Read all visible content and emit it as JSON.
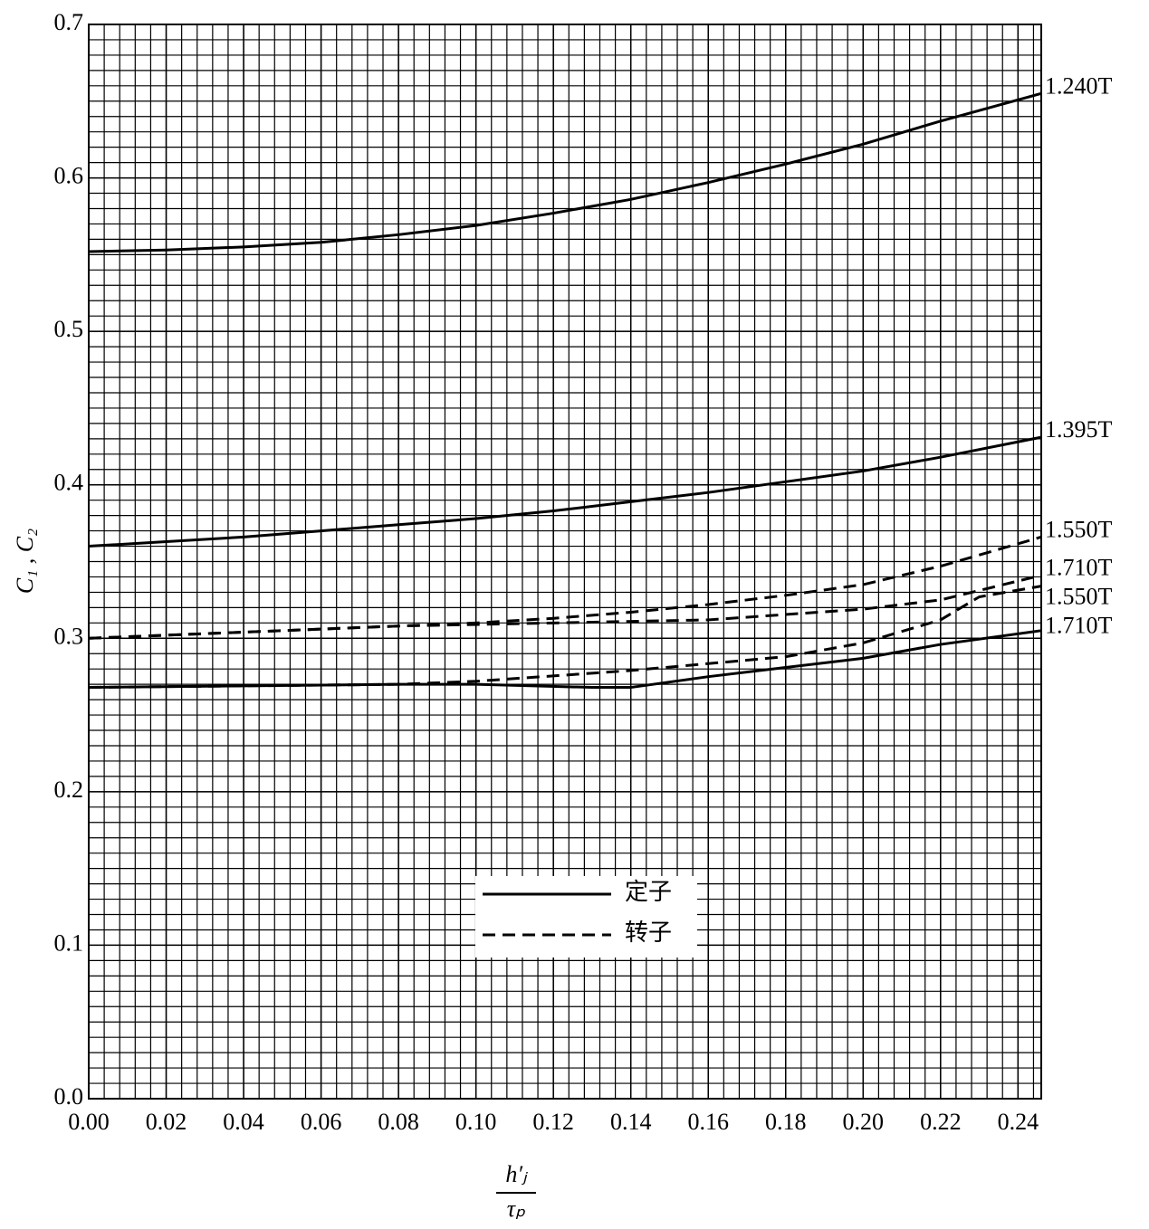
{
  "chart_data": {
    "type": "line",
    "y_label": "C₁ , C₂",
    "x_label": {
      "numerator": "h′ⱼ",
      "denominator": "τₚ"
    },
    "xlim": [
      0,
      0.246
    ],
    "ylim": [
      0,
      0.7
    ],
    "xticks": [
      {
        "value": 0,
        "label": "0.00"
      },
      0.02,
      0.04,
      0.06,
      0.08,
      {
        "value": 0.1,
        "label": "0.10"
      },
      0.12,
      0.14,
      0.16,
      0.18,
      {
        "value": 0.2,
        "label": "0.20"
      },
      0.22,
      0.24
    ],
    "yticks": [
      {
        "value": 0,
        "label": "0.0"
      },
      0.1,
      0.2,
      0.3,
      0.4,
      0.5,
      0.6,
      0.7
    ],
    "grid": true,
    "minor_grid": {
      "x": 5,
      "y": 10
    },
    "legend": [
      {
        "name": "定子",
        "dash": "solid"
      },
      {
        "name": "转子",
        "dash": "dashed"
      }
    ],
    "series": [
      {
        "label": "1.240T",
        "dash": "solid",
        "color": "#000000",
        "x": [
          0,
          0.02,
          0.04,
          0.06,
          0.08,
          0.1,
          0.12,
          0.14,
          0.16,
          0.18,
          0.2,
          0.22,
          0.246
        ],
        "values": [
          0.552,
          0.553,
          0.555,
          0.558,
          0.563,
          0.569,
          0.577,
          0.586,
          0.597,
          0.609,
          0.622,
          0.637,
          0.655
        ]
      },
      {
        "label": "1.395T",
        "dash": "solid",
        "color": "#000000",
        "x": [
          0,
          0.02,
          0.04,
          0.06,
          0.08,
          0.1,
          0.12,
          0.14,
          0.16,
          0.18,
          0.2,
          0.22,
          0.246
        ],
        "values": [
          0.36,
          0.363,
          0.366,
          0.37,
          0.374,
          0.378,
          0.383,
          0.389,
          0.395,
          0.402,
          0.409,
          0.418,
          0.431
        ]
      },
      {
        "label": "1.550T",
        "dash": "dashed",
        "color": "#000000",
        "x": [
          0,
          0.02,
          0.04,
          0.06,
          0.08,
          0.1,
          0.12,
          0.14,
          0.16,
          0.18,
          0.2,
          0.22,
          0.246
        ],
        "values": [
          0.3,
          0.302,
          0.304,
          0.306,
          0.308,
          0.31,
          0.313,
          0.317,
          0.322,
          0.328,
          0.335,
          0.347,
          0.366
        ]
      },
      {
        "label": "1.710T",
        "dash": "dashed",
        "color": "#000000",
        "x": [
          0,
          0.04,
          0.08,
          0.12,
          0.16,
          0.2,
          0.22,
          0.246
        ],
        "values": [
          0.3,
          0.304,
          0.308,
          0.31,
          0.312,
          0.319,
          0.325,
          0.341
        ]
      },
      {
        "label": "1.550T",
        "dash": "dashed",
        "color": "#000000",
        "x": [
          0,
          0.04,
          0.08,
          0.1,
          0.14,
          0.18,
          0.2,
          0.22,
          0.23,
          0.246
        ],
        "values": [
          0.268,
          0.269,
          0.27,
          0.272,
          0.279,
          0.288,
          0.297,
          0.312,
          0.327,
          0.334
        ]
      },
      {
        "label": "1.710T",
        "dash": "solid",
        "color": "#000000",
        "x": [
          0,
          0.04,
          0.08,
          0.1,
          0.13,
          0.14,
          0.16,
          0.18,
          0.2,
          0.22,
          0.246
        ],
        "values": [
          0.268,
          0.269,
          0.27,
          0.27,
          0.268,
          0.268,
          0.275,
          0.281,
          0.287,
          0.296,
          0.305
        ]
      }
    ]
  }
}
